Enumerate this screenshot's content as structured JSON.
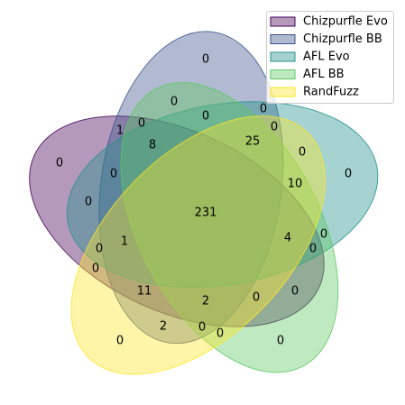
{
  "chart_data": {
    "type": "venn",
    "sets": [
      {
        "name": "Chizpurfle Evo",
        "color": "#440154"
      },
      {
        "name": "Chizpurfle BB",
        "color": "#3b528b"
      },
      {
        "name": "AFL Evo",
        "color": "#21918c"
      },
      {
        "name": "AFL BB",
        "color": "#5ec962"
      },
      {
        "name": "RandFuzz",
        "color": "#fde725"
      }
    ],
    "values": [
      0,
      0,
      0,
      0,
      0,
      1,
      0,
      8,
      25,
      0,
      0,
      0,
      0,
      10,
      0,
      231,
      0,
      4,
      1,
      0,
      0,
      0,
      11,
      0,
      0,
      2,
      2,
      0,
      0,
      0,
      0
    ],
    "legend": "upper right"
  }
}
